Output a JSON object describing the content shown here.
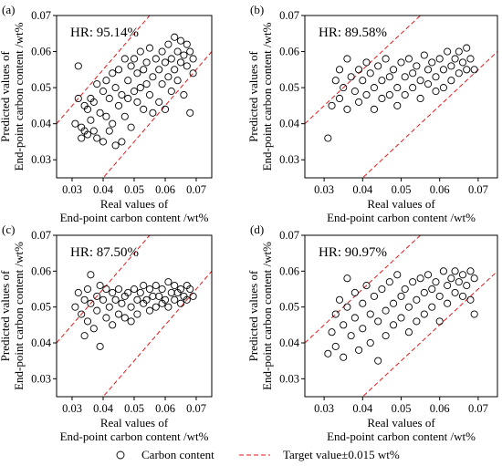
{
  "chart_data": [
    {
      "panel_label": "(a)",
      "hr_text": "HR: 95.14%",
      "type": "scatter",
      "xlabel": [
        "Real values of",
        "End-point carbon content /wt%"
      ],
      "ylabel": [
        "Predicted values of",
        "End-point carbon content /wt%"
      ],
      "xlim": [
        0.025,
        0.075
      ],
      "ylim": [
        0.025,
        0.07
      ],
      "xticks": [
        "0.03",
        "0.04",
        "0.05",
        "0.06",
        "0.07"
      ],
      "yticks": [
        "0.03",
        "0.04",
        "0.05",
        "0.06",
        "0.07"
      ],
      "xtick_values": [
        0.03,
        0.04,
        0.05,
        0.06,
        0.07
      ],
      "ytick_values": [
        0.03,
        0.04,
        0.05,
        0.06,
        0.07
      ],
      "tolerance": 0.015,
      "points": [
        [
          0.031,
          0.04
        ],
        [
          0.032,
          0.047
        ],
        [
          0.032,
          0.056
        ],
        [
          0.033,
          0.039
        ],
        [
          0.033,
          0.036
        ],
        [
          0.034,
          0.038
        ],
        [
          0.034,
          0.045
        ],
        [
          0.035,
          0.037
        ],
        [
          0.035,
          0.044
        ],
        [
          0.036,
          0.047
        ],
        [
          0.036,
          0.041
        ],
        [
          0.037,
          0.038
        ],
        [
          0.037,
          0.046
        ],
        [
          0.038,
          0.051
        ],
        [
          0.038,
          0.036
        ],
        [
          0.039,
          0.043
        ],
        [
          0.04,
          0.049
        ],
        [
          0.04,
          0.035
        ],
        [
          0.041,
          0.052
        ],
        [
          0.041,
          0.042
        ],
        [
          0.042,
          0.047
        ],
        [
          0.042,
          0.038
        ],
        [
          0.043,
          0.054
        ],
        [
          0.043,
          0.04
        ],
        [
          0.044,
          0.05
        ],
        [
          0.044,
          0.034
        ],
        [
          0.045,
          0.055
        ],
        [
          0.045,
          0.045
        ],
        [
          0.046,
          0.048
        ],
        [
          0.046,
          0.035
        ],
        [
          0.047,
          0.058
        ],
        [
          0.047,
          0.042
        ],
        [
          0.048,
          0.052
        ],
        [
          0.048,
          0.047
        ],
        [
          0.049,
          0.056
        ],
        [
          0.049,
          0.039
        ],
        [
          0.05,
          0.058
        ],
        [
          0.05,
          0.049
        ],
        [
          0.051,
          0.054
        ],
        [
          0.051,
          0.046
        ],
        [
          0.052,
          0.06
        ],
        [
          0.052,
          0.05
        ],
        [
          0.053,
          0.055
        ],
        [
          0.053,
          0.044
        ],
        [
          0.054,
          0.057
        ],
        [
          0.054,
          0.051
        ],
        [
          0.055,
          0.061
        ],
        [
          0.055,
          0.048
        ],
        [
          0.056,
          0.053
        ],
        [
          0.056,
          0.043
        ],
        [
          0.057,
          0.058
        ],
        [
          0.058,
          0.055
        ],
        [
          0.058,
          0.046
        ],
        [
          0.059,
          0.06
        ],
        [
          0.059,
          0.051
        ],
        [
          0.06,
          0.057
        ],
        [
          0.06,
          0.044
        ],
        [
          0.061,
          0.062
        ],
        [
          0.061,
          0.053
        ],
        [
          0.062,
          0.058
        ],
        [
          0.062,
          0.049
        ],
        [
          0.063,
          0.064
        ],
        [
          0.063,
          0.055
        ],
        [
          0.064,
          0.06
        ],
        [
          0.064,
          0.052
        ],
        [
          0.065,
          0.063
        ],
        [
          0.065,
          0.057
        ],
        [
          0.066,
          0.059
        ],
        [
          0.066,
          0.048
        ],
        [
          0.067,
          0.062
        ],
        [
          0.067,
          0.056
        ],
        [
          0.068,
          0.06
        ],
        [
          0.068,
          0.043
        ],
        [
          0.069,
          0.058
        ],
        [
          0.069,
          0.054
        ]
      ]
    },
    {
      "panel_label": "(b)",
      "hr_text": "HR: 89.58%",
      "type": "scatter",
      "xlabel": [
        "Real values of",
        "End-point carbon content /wt%"
      ],
      "ylabel": [
        "Predicted values of",
        "End-point carbon content /wt%"
      ],
      "xlim": [
        0.025,
        0.075
      ],
      "ylim": [
        0.025,
        0.07
      ],
      "xticks": [
        "0.03",
        "0.04",
        "0.05",
        "0.06",
        "0.07"
      ],
      "yticks": [
        "0.03",
        "0.04",
        "0.05",
        "0.06",
        "0.07"
      ],
      "xtick_values": [
        0.03,
        0.04,
        0.05,
        0.06,
        0.07
      ],
      "ytick_values": [
        0.03,
        0.04,
        0.05,
        0.06,
        0.07
      ],
      "tolerance": 0.015,
      "points": [
        [
          0.031,
          0.036
        ],
        [
          0.032,
          0.045
        ],
        [
          0.033,
          0.052
        ],
        [
          0.034,
          0.047
        ],
        [
          0.034,
          0.055
        ],
        [
          0.035,
          0.05
        ],
        [
          0.036,
          0.058
        ],
        [
          0.036,
          0.044
        ],
        [
          0.037,
          0.053
        ],
        [
          0.038,
          0.049
        ],
        [
          0.039,
          0.055
        ],
        [
          0.039,
          0.046
        ],
        [
          0.04,
          0.052
        ],
        [
          0.041,
          0.057
        ],
        [
          0.041,
          0.048
        ],
        [
          0.042,
          0.054
        ],
        [
          0.043,
          0.05
        ],
        [
          0.043,
          0.044
        ],
        [
          0.044,
          0.056
        ],
        [
          0.045,
          0.052
        ],
        [
          0.045,
          0.047
        ],
        [
          0.046,
          0.058
        ],
        [
          0.047,
          0.053
        ],
        [
          0.047,
          0.048
        ],
        [
          0.048,
          0.055
        ],
        [
          0.049,
          0.05
        ],
        [
          0.049,
          0.045
        ],
        [
          0.05,
          0.057
        ],
        [
          0.051,
          0.053
        ],
        [
          0.051,
          0.048
        ],
        [
          0.052,
          0.058
        ],
        [
          0.053,
          0.054
        ],
        [
          0.053,
          0.05
        ],
        [
          0.054,
          0.056
        ],
        [
          0.055,
          0.052
        ],
        [
          0.055,
          0.047
        ],
        [
          0.056,
          0.059
        ],
        [
          0.057,
          0.055
        ],
        [
          0.057,
          0.051
        ],
        [
          0.058,
          0.057
        ],
        [
          0.059,
          0.053
        ],
        [
          0.059,
          0.049
        ],
        [
          0.06,
          0.058
        ],
        [
          0.061,
          0.055
        ],
        [
          0.061,
          0.05
        ],
        [
          0.062,
          0.06
        ],
        [
          0.063,
          0.056
        ],
        [
          0.063,
          0.052
        ],
        [
          0.064,
          0.058
        ],
        [
          0.065,
          0.054
        ],
        [
          0.065,
          0.06
        ],
        [
          0.066,
          0.057
        ],
        [
          0.067,
          0.055
        ],
        [
          0.067,
          0.061
        ],
        [
          0.068,
          0.058
        ],
        [
          0.069,
          0.055
        ]
      ]
    },
    {
      "panel_label": "(c)",
      "hr_text": "HR: 87.50%",
      "type": "scatter",
      "xlabel": [
        "Real values of",
        "End-point carbon content /wt%"
      ],
      "ylabel": [
        "Predicted values of",
        "End-point carbon content /wt%"
      ],
      "xlim": [
        0.025,
        0.075
      ],
      "ylim": [
        0.025,
        0.07
      ],
      "xticks": [
        "0.03",
        "0.04",
        "0.05",
        "0.06",
        "0.07"
      ],
      "yticks": [
        "0.03",
        "0.04",
        "0.05",
        "0.06",
        "0.07"
      ],
      "xtick_values": [
        0.03,
        0.04,
        0.05,
        0.06,
        0.07
      ],
      "ytick_values": [
        0.03,
        0.04,
        0.05,
        0.06,
        0.07
      ],
      "tolerance": 0.015,
      "points": [
        [
          0.031,
          0.05
        ],
        [
          0.032,
          0.054
        ],
        [
          0.033,
          0.048
        ],
        [
          0.034,
          0.052
        ],
        [
          0.034,
          0.042
        ],
        [
          0.035,
          0.055
        ],
        [
          0.035,
          0.046
        ],
        [
          0.036,
          0.051
        ],
        [
          0.036,
          0.059
        ],
        [
          0.037,
          0.044
        ],
        [
          0.038,
          0.053
        ],
        [
          0.038,
          0.049
        ],
        [
          0.039,
          0.056
        ],
        [
          0.039,
          0.039
        ],
        [
          0.04,
          0.052
        ],
        [
          0.041,
          0.047
        ],
        [
          0.041,
          0.055
        ],
        [
          0.042,
          0.05
        ],
        [
          0.043,
          0.054
        ],
        [
          0.043,
          0.045
        ],
        [
          0.044,
          0.052
        ],
        [
          0.045,
          0.048
        ],
        [
          0.045,
          0.055
        ],
        [
          0.046,
          0.051
        ],
        [
          0.047,
          0.053
        ],
        [
          0.047,
          0.047
        ],
        [
          0.048,
          0.054
        ],
        [
          0.049,
          0.05
        ],
        [
          0.049,
          0.046
        ],
        [
          0.05,
          0.055
        ],
        [
          0.051,
          0.052
        ],
        [
          0.051,
          0.048
        ],
        [
          0.052,
          0.054
        ],
        [
          0.053,
          0.051
        ],
        [
          0.053,
          0.056
        ],
        [
          0.054,
          0.052
        ],
        [
          0.055,
          0.049
        ],
        [
          0.055,
          0.055
        ],
        [
          0.056,
          0.053
        ],
        [
          0.057,
          0.05
        ],
        [
          0.057,
          0.056
        ],
        [
          0.058,
          0.053
        ],
        [
          0.059,
          0.051
        ],
        [
          0.059,
          0.055
        ],
        [
          0.06,
          0.052
        ],
        [
          0.061,
          0.057
        ],
        [
          0.061,
          0.05
        ],
        [
          0.062,
          0.054
        ],
        [
          0.063,
          0.052
        ],
        [
          0.063,
          0.056
        ],
        [
          0.064,
          0.054
        ],
        [
          0.065,
          0.051
        ],
        [
          0.065,
          0.055
        ],
        [
          0.066,
          0.053
        ],
        [
          0.067,
          0.056
        ],
        [
          0.067,
          0.052
        ],
        [
          0.068,
          0.055
        ],
        [
          0.069,
          0.053
        ]
      ]
    },
    {
      "panel_label": "(d)",
      "hr_text": "HR: 90.97%",
      "type": "scatter",
      "xlabel": [
        "Real values of",
        "End-point carbon content /wt%"
      ],
      "ylabel": [
        "Predicted values of",
        "End-point carbon content /wt%"
      ],
      "xlim": [
        0.025,
        0.075
      ],
      "ylim": [
        0.025,
        0.07
      ],
      "xticks": [
        "0.03",
        "0.04",
        "0.05",
        "0.06",
        "0.07"
      ],
      "yticks": [
        "0.03",
        "0.04",
        "0.05",
        "0.06",
        "0.07"
      ],
      "xtick_values": [
        0.03,
        0.04,
        0.05,
        0.06,
        0.07
      ],
      "ytick_values": [
        0.03,
        0.04,
        0.05,
        0.06,
        0.07
      ],
      "tolerance": 0.015,
      "points": [
        [
          0.031,
          0.037
        ],
        [
          0.032,
          0.043
        ],
        [
          0.033,
          0.048
        ],
        [
          0.033,
          0.039
        ],
        [
          0.034,
          0.052
        ],
        [
          0.035,
          0.045
        ],
        [
          0.035,
          0.036
        ],
        [
          0.036,
          0.05
        ],
        [
          0.036,
          0.058
        ],
        [
          0.037,
          0.042
        ],
        [
          0.038,
          0.054
        ],
        [
          0.038,
          0.047
        ],
        [
          0.039,
          0.038
        ],
        [
          0.04,
          0.051
        ],
        [
          0.04,
          0.044
        ],
        [
          0.041,
          0.056
        ],
        [
          0.042,
          0.048
        ],
        [
          0.042,
          0.04
        ],
        [
          0.043,
          0.053
        ],
        [
          0.044,
          0.046
        ],
        [
          0.044,
          0.035
        ],
        [
          0.045,
          0.055
        ],
        [
          0.046,
          0.049
        ],
        [
          0.046,
          0.042
        ],
        [
          0.047,
          0.057
        ],
        [
          0.048,
          0.051
        ],
        [
          0.048,
          0.045
        ],
        [
          0.049,
          0.059
        ],
        [
          0.05,
          0.053
        ],
        [
          0.05,
          0.047
        ],
        [
          0.051,
          0.055
        ],
        [
          0.052,
          0.05
        ],
        [
          0.052,
          0.043
        ],
        [
          0.053,
          0.057
        ],
        [
          0.054,
          0.052
        ],
        [
          0.054,
          0.046
        ],
        [
          0.055,
          0.058
        ],
        [
          0.056,
          0.054
        ],
        [
          0.056,
          0.048
        ],
        [
          0.057,
          0.059
        ],
        [
          0.058,
          0.055
        ],
        [
          0.058,
          0.05
        ],
        [
          0.059,
          0.057
        ],
        [
          0.06,
          0.053
        ],
        [
          0.06,
          0.046
        ],
        [
          0.061,
          0.06
        ],
        [
          0.062,
          0.056
        ],
        [
          0.062,
          0.051
        ],
        [
          0.063,
          0.058
        ],
        [
          0.064,
          0.054
        ],
        [
          0.064,
          0.06
        ],
        [
          0.065,
          0.057
        ],
        [
          0.066,
          0.053
        ],
        [
          0.066,
          0.059
        ],
        [
          0.067,
          0.056
        ],
        [
          0.068,
          0.06
        ],
        [
          0.068,
          0.052
        ],
        [
          0.069,
          0.058
        ],
        [
          0.069,
          0.048
        ]
      ]
    }
  ],
  "legend": {
    "marker_label": "Carbon content",
    "line_label": "Target value±0.015 wt%"
  },
  "colors": {
    "points": "#000000",
    "target_lines": "#e41a1c",
    "frame": "#000000"
  }
}
